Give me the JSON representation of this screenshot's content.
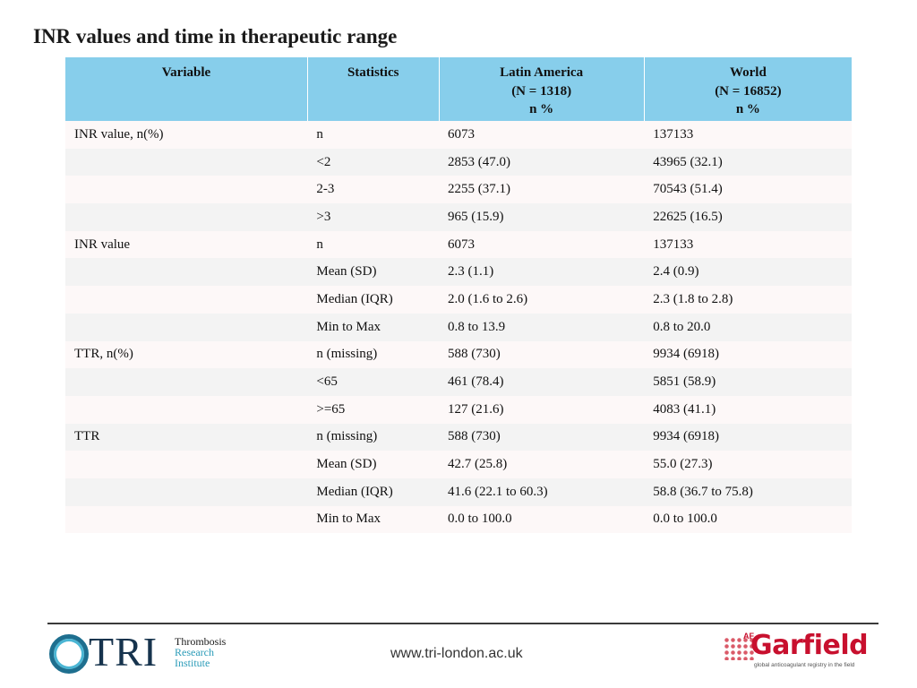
{
  "title": "INR values and time in therapeutic range",
  "table": {
    "headers": {
      "variable": [
        "Variable"
      ],
      "statistics": [
        "Statistics"
      ],
      "latin_america": [
        "Latin America",
        "(N = 1318)",
        "n %"
      ],
      "world": [
        "World",
        "(N = 16852)",
        "n %"
      ]
    },
    "rows": [
      [
        "INR value, n(%)",
        "n",
        "6073",
        "137133"
      ],
      [
        "",
        "<2",
        "2853 (47.0)",
        "43965 (32.1)"
      ],
      [
        "",
        "2-3",
        "2255 (37.1)",
        "70543 (51.4)"
      ],
      [
        "",
        ">3",
        "965 (15.9)",
        "22625 (16.5)"
      ],
      [
        "INR value",
        "n",
        "6073",
        "137133"
      ],
      [
        "",
        "Mean (SD)",
        "2.3 (1.1)",
        "2.4 (0.9)"
      ],
      [
        "",
        "Median (IQR)",
        "2.0 (1.6 to 2.6)",
        "2.3 (1.8 to 2.8)"
      ],
      [
        "",
        "Min to Max",
        "0.8 to 13.9",
        "0.8 to 20.0"
      ],
      [
        "TTR, n(%)",
        "n (missing)",
        "588 (730)",
        "9934 (6918)"
      ],
      [
        "",
        "<65",
        "461 (78.4)",
        "5851 (58.9)"
      ],
      [
        "",
        ">=65",
        "127 (21.6)",
        "4083 (41.1)"
      ],
      [
        "TTR",
        "n (missing)",
        "588 (730)",
        "9934 (6918)"
      ],
      [
        "",
        "Mean (SD)",
        "42.7 (25.8)",
        "55.0 (27.3)"
      ],
      [
        "",
        "Median (IQR)",
        "41.6 (22.1 to 60.3)",
        "58.8 (36.7 to 75.8)"
      ],
      [
        "",
        "Min to Max",
        "0.0 to 100.0",
        "0.0 to 100.0"
      ]
    ]
  },
  "footer": {
    "tri_logo": {
      "mark": "TRI",
      "lines": [
        "Thrombosis",
        "Research",
        "Institute"
      ]
    },
    "url": "www.tri-london.ac.uk",
    "garfield_logo": {
      "superscript": "AF",
      "word": "Garfield",
      "tagline": "global anticoagulant registry in the field"
    }
  },
  "colors": {
    "header_bg": "#87ceeb",
    "row_odd": "#fdf8f8",
    "row_even": "#f3f3f3",
    "brand_red": "#c8102e",
    "brand_teal": "#2a9bb8"
  }
}
